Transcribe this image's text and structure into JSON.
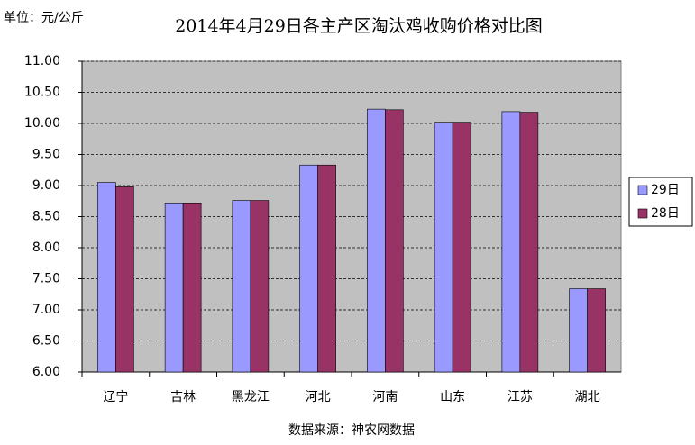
{
  "chart_data": {
    "type": "bar",
    "title": "2014年4月29日各主产区淘汰鸡收购价格对比图",
    "unit_label": "单位：元/公斤",
    "source": "数据来源：神农网数据",
    "categories": [
      "辽宁",
      "吉林",
      "黑龙江",
      "河北",
      "河南",
      "山东",
      "江苏",
      "湖北"
    ],
    "series": [
      {
        "name": "29日",
        "color": "#9999ff",
        "values": [
          9.05,
          8.72,
          8.76,
          9.33,
          10.23,
          10.02,
          10.19,
          7.34
        ]
      },
      {
        "name": "28日",
        "color": "#993366",
        "values": [
          8.98,
          8.72,
          8.76,
          9.33,
          10.22,
          10.02,
          10.18,
          7.34
        ]
      }
    ],
    "ylim": [
      6,
      11
    ],
    "yticks": [
      {
        "value": 6,
        "label": "6.00"
      },
      {
        "value": 6.5,
        "label": "6.50"
      },
      {
        "value": 7,
        "label": "7.00"
      },
      {
        "value": 7.5,
        "label": "7.50"
      },
      {
        "value": 8,
        "label": "8.00"
      },
      {
        "value": 8.5,
        "label": "8.50"
      },
      {
        "value": 9,
        "label": "9.00"
      },
      {
        "value": 9.5,
        "label": "9.50"
      },
      {
        "value": 10,
        "label": "10.00"
      },
      {
        "value": 10.5,
        "label": "10.50"
      },
      {
        "value": 11,
        "label": "11.00"
      }
    ],
    "grid": true,
    "legend": "right",
    "plot_background": "#c0c0c0"
  }
}
